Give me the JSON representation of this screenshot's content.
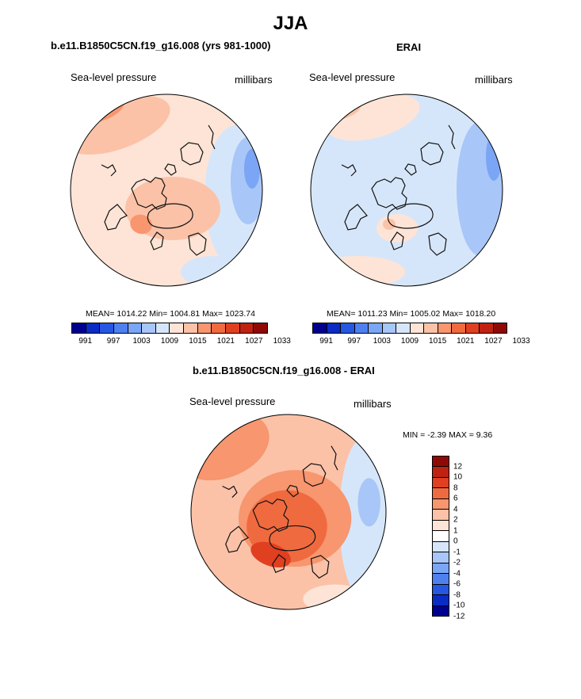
{
  "title": "JJA",
  "panels": [
    {
      "id": "model",
      "title": "b.e11.B1850C5CN.f19_g16.008 (yrs 981-1000)",
      "variable": "Sea-level pressure",
      "units": "millibars",
      "stats": "MEAN= 1014.22  Min= 1004.81  Max= 1023.74",
      "mean": 1014.22,
      "min": 1004.81,
      "max": 1023.74
    },
    {
      "id": "erai",
      "title": "ERAI",
      "variable": "Sea-level pressure",
      "units": "millibars",
      "stats": "MEAN= 1011.23  Min= 1005.02  Max= 1018.20",
      "mean": 1011.23,
      "min": 1005.02,
      "max": 1018.2
    }
  ],
  "diff_panel": {
    "title": "b.e11.B1850C5CN.f19_g16.008 - ERAI",
    "variable": "Sea-level pressure",
    "units": "millibars",
    "stats": "MIN =  -2.39 MAX =   9.36",
    "min": -2.39,
    "max": 9.36
  },
  "chart_data": [
    {
      "type": "heatmap",
      "projection": "north-polar-stereographic",
      "title": "b.e11.B1850C5CN.f19_g16.008 (yrs 981-1000)",
      "variable": "Sea-level pressure",
      "units": "millibars",
      "mean": 1014.22,
      "min": 1004.81,
      "max": 1023.74,
      "colorbar_ticks": [
        "991",
        "997",
        "1003",
        "1009",
        "1015",
        "1021",
        "1027",
        "1033"
      ],
      "colorbar_colors": [
        "#00008f",
        "#0a2bc4",
        "#2657e3",
        "#4f80f0",
        "#7ba5f5",
        "#a8c6f7",
        "#d6e6fa",
        "#fde4d6",
        "#fbc2a8",
        "#f7966f",
        "#f06a3f",
        "#e04020",
        "#bf2210",
        "#8f0a06"
      ]
    },
    {
      "type": "heatmap",
      "projection": "north-polar-stereographic",
      "title": "ERAI",
      "variable": "Sea-level pressure",
      "units": "millibars",
      "mean": 1011.23,
      "min": 1005.02,
      "max": 1018.2,
      "colorbar_ticks": [
        "991",
        "997",
        "1003",
        "1009",
        "1015",
        "1021",
        "1027",
        "1033"
      ],
      "colorbar_colors": [
        "#00008f",
        "#0a2bc4",
        "#2657e3",
        "#4f80f0",
        "#7ba5f5",
        "#a8c6f7",
        "#d6e6fa",
        "#fde4d6",
        "#fbc2a8",
        "#f7966f",
        "#f06a3f",
        "#e04020",
        "#bf2210",
        "#8f0a06"
      ]
    },
    {
      "type": "heatmap",
      "projection": "north-polar-stereographic",
      "title": "b.e11.B1850C5CN.f19_g16.008 - ERAI",
      "variable": "Sea-level pressure",
      "units": "millibars",
      "min": -2.39,
      "max": 9.36,
      "colorbar_ticks": [
        "12",
        "10",
        "8",
        "6",
        "4",
        "2",
        "1",
        "0",
        "-1",
        "-2",
        "-4",
        "-6",
        "-8",
        "-10",
        "-12"
      ],
      "colorbar_colors": [
        "#8f0a06",
        "#bf2210",
        "#e04020",
        "#f06a3f",
        "#f7966f",
        "#fbc2a8",
        "#fde4d6",
        "#ffffff",
        "#d6e6fa",
        "#a8c6f7",
        "#7ba5f5",
        "#4f80f0",
        "#2657e3",
        "#0a2bc4",
        "#00008f"
      ]
    }
  ]
}
